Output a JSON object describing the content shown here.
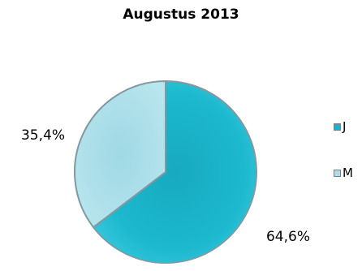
{
  "chart_data": {
    "type": "pie",
    "title": "Augustus 2013",
    "categories": [
      "J",
      "M"
    ],
    "values": [
      64.6,
      35.4
    ],
    "data_labels": [
      "64,6%",
      "35,4%"
    ],
    "colors": [
      "#1ab2c8",
      "#a9dde8"
    ],
    "legend_position": "right"
  }
}
